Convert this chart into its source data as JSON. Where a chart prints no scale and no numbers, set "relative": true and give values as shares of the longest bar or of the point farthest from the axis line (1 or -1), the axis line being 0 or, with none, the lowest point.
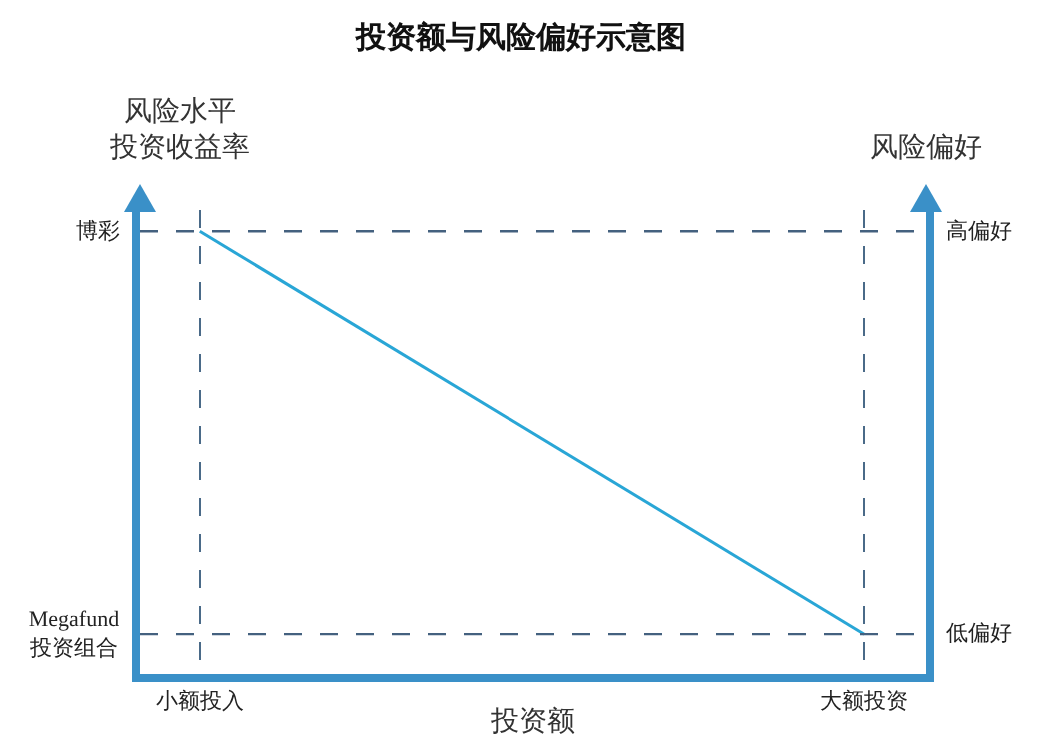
{
  "chart_data": {
    "type": "line",
    "title": "投资额与风险偏好示意图",
    "xlabel": "投资额",
    "ylabel": "风险水平投资收益率",
    "y2label": "风险偏好",
    "categories": [
      "小额投入",
      "大额投资"
    ],
    "series": [
      {
        "color": "#29a6d6",
        "values": [
          1,
          0.09
        ]
      }
    ],
    "relative": true,
    "ref_lines": [
      {
        "axis": "y",
        "value": 1,
        "label": "博彩",
        "color": "#44617f",
        "line_style": "dashed"
      },
      {
        "axis": "y",
        "value": 0.09,
        "label": "Megafund 投资组合",
        "color": "#44617f",
        "line_style": "dashed"
      }
    ],
    "annotations": [
      "高偏好",
      "低偏好"
    ],
    "grid": "x",
    "line_style": "solid"
  }
}
